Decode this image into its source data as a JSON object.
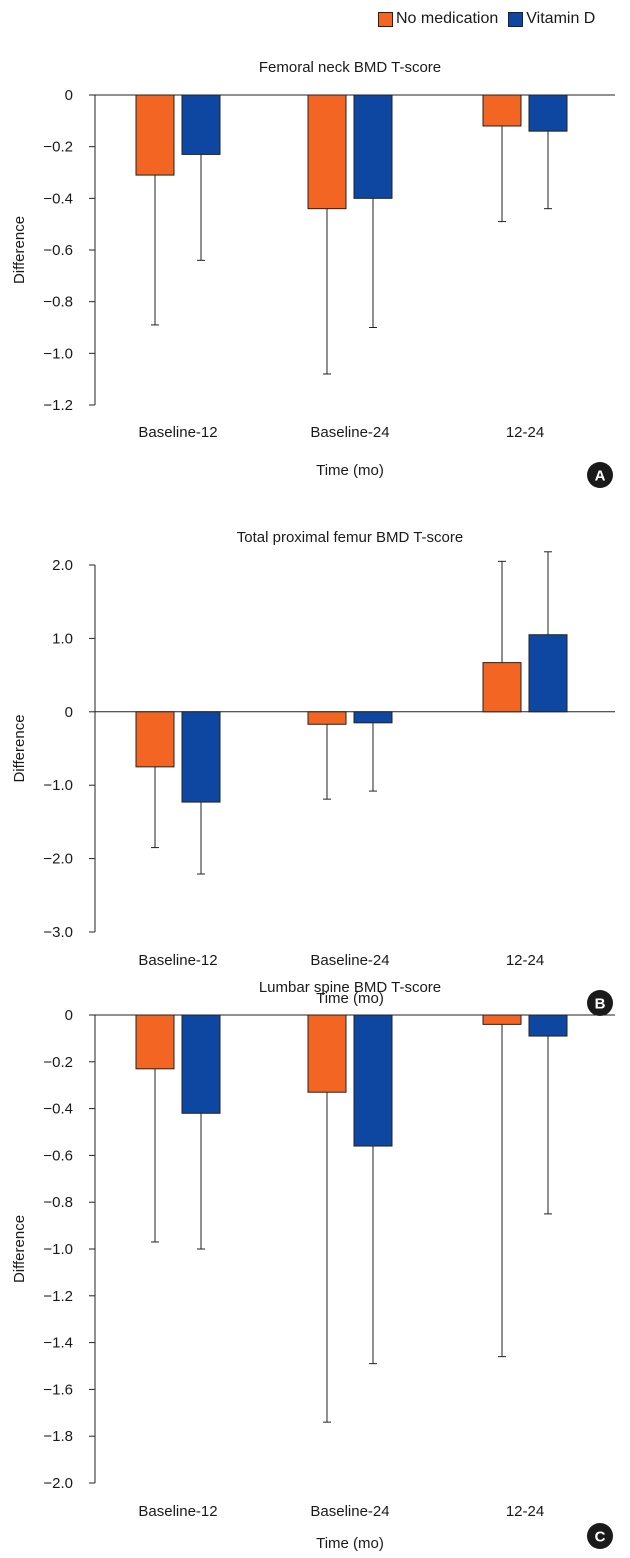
{
  "legend": [
    {
      "label": "No medication",
      "color": "#F26522"
    },
    {
      "label": "Vitamin D",
      "color": "#0D47A1"
    }
  ],
  "chart_data": [
    {
      "type": "bar",
      "panel_label": "A",
      "title": "Femoral neck BMD T-score",
      "xlabel": "Time (mo)",
      "ylabel": "Difference",
      "categories": [
        "Baseline-12",
        "Baseline-24",
        "12-24"
      ],
      "ylim": [
        -1.2,
        0
      ],
      "yticks": [
        0,
        -0.2,
        -0.4,
        -0.6,
        -0.8,
        -1.0,
        -1.2
      ],
      "ytick_labels": [
        "0",
        "−0.2",
        "−0.4",
        "−0.6",
        "−0.8",
        "−1.0",
        "−1.2"
      ],
      "series": [
        {
          "name": "No medication",
          "color": "#F26522",
          "values": [
            -0.31,
            -0.44,
            -0.12
          ],
          "error": [
            0.58,
            0.64,
            0.37
          ]
        },
        {
          "name": "Vitamin D",
          "color": "#0D47A1",
          "values": [
            -0.23,
            -0.4,
            -0.14
          ],
          "error": [
            0.41,
            0.5,
            0.3
          ]
        }
      ]
    },
    {
      "type": "bar",
      "panel_label": "B",
      "title": "Total proximal femur BMD T-score",
      "xlabel": "Time (mo)",
      "ylabel": "Difference",
      "categories": [
        "Baseline-12",
        "Baseline-24",
        "12-24"
      ],
      "ylim": [
        -3.0,
        2.0
      ],
      "yticks": [
        2.0,
        1.0,
        0,
        -1.0,
        -2.0,
        -3.0
      ],
      "ytick_labels": [
        "2.0",
        "1.0",
        "0",
        "−1.0",
        "−2.0",
        "−3.0"
      ],
      "series": [
        {
          "name": "No medication",
          "color": "#F26522",
          "values": [
            -0.75,
            -0.17,
            0.67
          ],
          "error": [
            1.1,
            1.02,
            1.38
          ]
        },
        {
          "name": "Vitamin D",
          "color": "#0D47A1",
          "values": [
            -1.23,
            -0.15,
            1.05
          ],
          "error": [
            0.98,
            0.93,
            1.13
          ]
        }
      ]
    },
    {
      "type": "bar",
      "panel_label": "C",
      "title": "Lumbar spine BMD T-score",
      "xlabel": "Time (mo)",
      "ylabel": "Difference",
      "categories": [
        "Baseline-12",
        "Baseline-24",
        "12-24"
      ],
      "ylim": [
        -2.0,
        0
      ],
      "yticks": [
        0,
        -0.2,
        -0.4,
        -0.6,
        -0.8,
        -1.0,
        -1.2,
        -1.4,
        -1.6,
        -1.8,
        -2.0
      ],
      "ytick_labels": [
        "0",
        "−0.2",
        "−0.4",
        "−0.6",
        "−0.8",
        "−1.0",
        "−1.2",
        "−1.4",
        "−1.6",
        "−1.8",
        "−2.0"
      ],
      "series": [
        {
          "name": "No medication",
          "color": "#F26522",
          "values": [
            -0.23,
            -0.33,
            -0.04
          ],
          "error": [
            0.74,
            1.41,
            1.42
          ]
        },
        {
          "name": "Vitamin D",
          "color": "#0D47A1",
          "values": [
            -0.42,
            -0.56,
            -0.09
          ],
          "error": [
            0.58,
            0.93,
            0.76
          ]
        }
      ]
    }
  ]
}
